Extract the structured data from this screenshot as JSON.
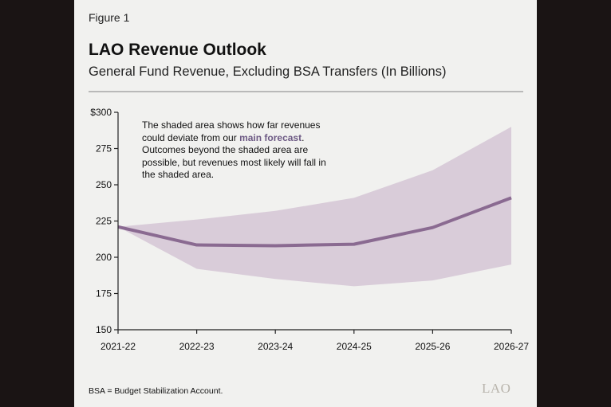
{
  "figure_label": "Figure 1",
  "title": "LAO Revenue Outlook",
  "subtitle": "General Fund Revenue, Excluding BSA Transfers (In Billions)",
  "note": {
    "before": "The shaded area shows how far revenues could deviate from our ",
    "highlight": "main forecast",
    "after": ". Outcomes beyond the shaded area are possible, but revenues most likely will fall in the shaded area."
  },
  "footnote": "BSA = Budget Stabilization Account.",
  "logo_text": "LAO",
  "colors": {
    "band": "#d9ccd9",
    "line": "#8a6a91",
    "axis": "#222222",
    "highlight": "#6d5a84"
  },
  "chart_data": {
    "type": "area",
    "categories": [
      "2021-22",
      "2022-23",
      "2023-24",
      "2024-25",
      "2025-26",
      "2026-27"
    ],
    "series": [
      {
        "values": [
          221,
          208.5,
          208,
          209,
          220.5,
          241
        ]
      }
    ],
    "band": {
      "upper": [
        221,
        226,
        232,
        241,
        260,
        290
      ],
      "lower": [
        221,
        192,
        185,
        180,
        184,
        195
      ]
    },
    "ylim": [
      150,
      300
    ],
    "yticks": [
      150,
      175,
      200,
      225,
      250,
      275,
      300
    ],
    "ytick_labels": [
      "150",
      "175",
      "200",
      "225",
      "250",
      "275",
      "$300"
    ],
    "grid": false
  }
}
